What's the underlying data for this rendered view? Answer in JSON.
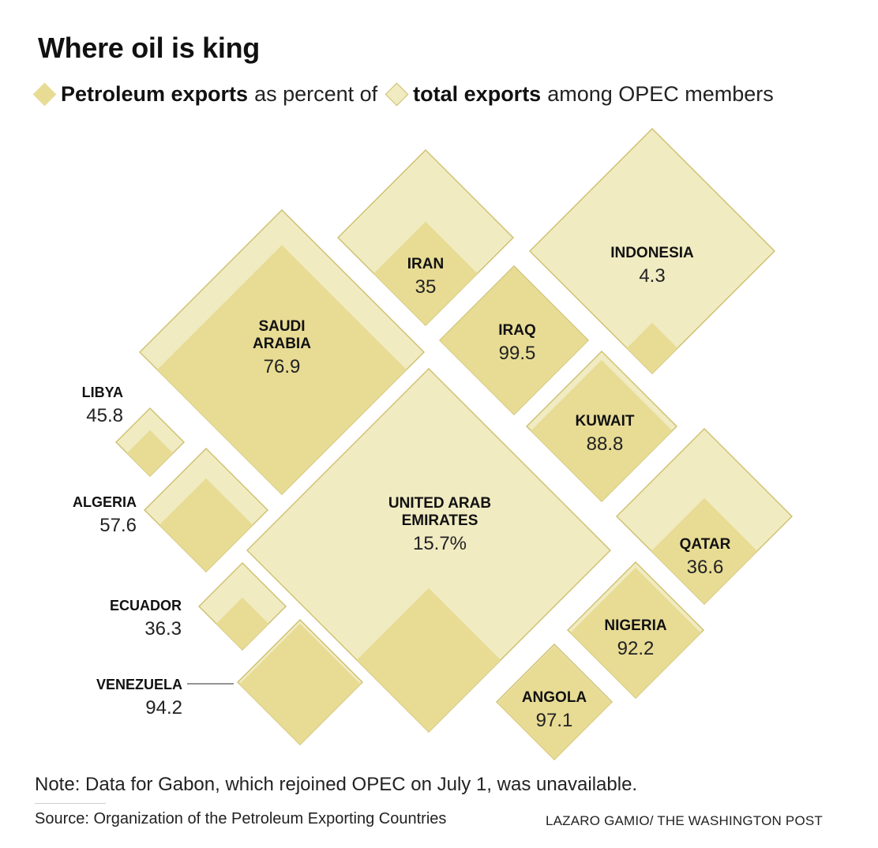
{
  "title": "Where oil is king",
  "legend": {
    "petroleum_label": "Petroleum exports",
    "connector": "as percent of",
    "total_label": "total exports",
    "suffix": "among OPEC members",
    "colors": {
      "petroleum": "#e8dc95",
      "total": "#f1ebc2",
      "outline": "#cdbf6e"
    }
  },
  "chart_data": {
    "type": "other",
    "measure": "Petroleum exports as percent of total exports",
    "items": [
      {
        "country": "SAUDI ARABIA",
        "label_lines": [
          "SAUDI",
          "ARABIA"
        ],
        "value": 76.9,
        "value_label": "76.9"
      },
      {
        "country": "IRAN",
        "label_lines": [
          "IRAN"
        ],
        "value": 35,
        "value_label": "35"
      },
      {
        "country": "INDONESIA",
        "label_lines": [
          "INDONESIA"
        ],
        "value": 4.3,
        "value_label": "4.3"
      },
      {
        "country": "IRAQ",
        "label_lines": [
          "IRAQ"
        ],
        "value": 99.5,
        "value_label": "99.5"
      },
      {
        "country": "KUWAIT",
        "label_lines": [
          "KUWAIT"
        ],
        "value": 88.8,
        "value_label": "88.8"
      },
      {
        "country": "LIBYA",
        "label_lines": [
          "LIBYA"
        ],
        "value": 45.8,
        "value_label": "45.8"
      },
      {
        "country": "ALGERIA",
        "label_lines": [
          "ALGERIA"
        ],
        "value": 57.6,
        "value_label": "57.6"
      },
      {
        "country": "UNITED ARAB EMIRATES",
        "label_lines": [
          "UNITED ARAB",
          "EMIRATES"
        ],
        "value": 15.7,
        "value_label": "15.7%"
      },
      {
        "country": "QATAR",
        "label_lines": [
          "QATAR"
        ],
        "value": 36.6,
        "value_label": "36.6"
      },
      {
        "country": "ECUADOR",
        "label_lines": [
          "ECUADOR"
        ],
        "value": 36.3,
        "value_label": "36.3"
      },
      {
        "country": "NIGERIA",
        "label_lines": [
          "NIGERIA"
        ],
        "value": 92.2,
        "value_label": "92.2"
      },
      {
        "country": "VENEZUELA",
        "label_lines": [
          "VENEZUELA"
        ],
        "value": 94.2,
        "value_label": "94.2"
      },
      {
        "country": "ANGOLA",
        "label_lines": [
          "ANGOLA"
        ],
        "value": 97.1,
        "value_label": "97.1"
      }
    ]
  },
  "note": "Note: Data for Gabon, which rejoined OPEC on July 1, was unavailable.",
  "source": "Source: Organization of the Petroleum Exporting Countries",
  "credit": "LAZARO GAMIO/ THE WASHINGTON POST"
}
